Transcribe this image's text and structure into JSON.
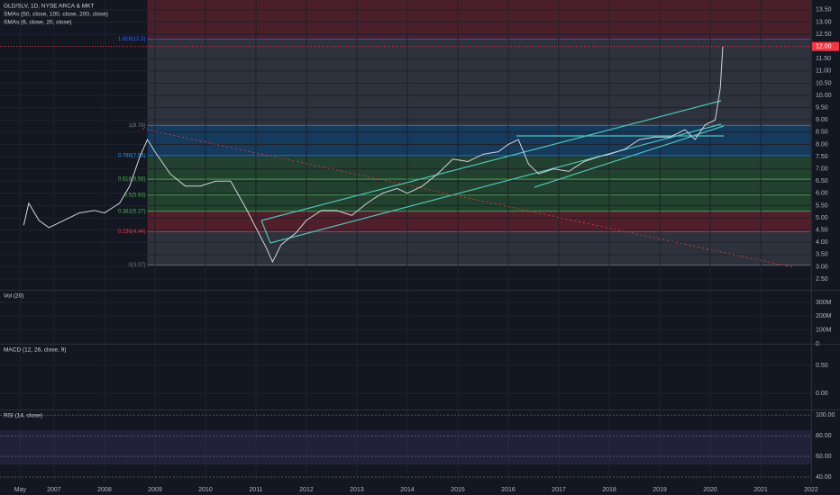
{
  "header": {
    "symbol": "GLD/SLV, 1D, NYSE ARCA & MKT",
    "sma1": "SMAs (50, close, 100, close, 200, close)",
    "sma2": "SMAs (6, close, 20, close)"
  },
  "chart_data": {
    "type": "line",
    "xlim": [
      2005.93,
      2022
    ],
    "ylim": [
      2.06,
      13.9
    ],
    "xticks": [
      {
        "value": 2006.33,
        "label": "May"
      },
      2007,
      2008,
      2009,
      2010,
      2011,
      2012,
      2013,
      2014,
      2015,
      2016,
      2017,
      2018,
      2019,
      2020,
      2021,
      2022
    ],
    "yticks": [
      {
        "value": 2.5,
        "label": "2.50"
      },
      {
        "value": 3,
        "label": "3.00"
      },
      {
        "value": 3.5,
        "label": "3.50"
      },
      {
        "value": 4,
        "label": "4.00"
      },
      {
        "value": 4.5,
        "label": "4.50"
      },
      {
        "value": 5,
        "label": "5.00"
      },
      {
        "value": 5.5,
        "label": "5.50"
      },
      {
        "value": 6,
        "label": "6.00"
      },
      {
        "value": 6.5,
        "label": "6.50"
      },
      {
        "value": 7,
        "label": "7.00"
      },
      {
        "value": 7.5,
        "label": "7.50"
      },
      {
        "value": 8,
        "label": "8.00"
      },
      {
        "value": 8.5,
        "label": "8.50"
      },
      {
        "value": 9,
        "label": "9.00"
      },
      {
        "value": 9.5,
        "label": "9.50"
      },
      {
        "value": 10,
        "label": "10.00"
      },
      {
        "value": 10.5,
        "label": "10.50"
      },
      {
        "value": 11,
        "label": "11.00"
      },
      {
        "value": 11.5,
        "label": "11.50"
      },
      {
        "value": 12.5,
        "label": "12.50"
      },
      {
        "value": 13,
        "label": "13.00"
      },
      {
        "value": 13.5,
        "label": "13.50"
      }
    ],
    "grid": true,
    "last_price": {
      "value": 12,
      "label": "12.00",
      "color": "#f23645"
    },
    "series": [
      {
        "color": "#d1d4dc",
        "x": [
          2006.4,
          2006.5,
          2006.7,
          2006.9,
          2007.2,
          2007.5,
          2007.8,
          2008.0,
          2008.3,
          2008.5,
          2008.7,
          2008.85,
          2009.0,
          2009.3,
          2009.6,
          2009.9,
          2010.2,
          2010.5,
          2010.8,
          2011.0,
          2011.2,
          2011.33,
          2011.5,
          2011.8,
          2012.0,
          2012.3,
          2012.6,
          2012.9,
          2013.2,
          2013.5,
          2013.8,
          2014.0,
          2014.3,
          2014.6,
          2014.9,
          2015.2,
          2015.5,
          2015.8,
          2016.0,
          2016.2,
          2016.4,
          2016.6,
          2016.9,
          2017.2,
          2017.5,
          2017.8,
          2018.0,
          2018.3,
          2018.6,
          2018.9,
          2019.2,
          2019.5,
          2019.7,
          2019.9,
          2020.1,
          2020.2,
          2020.25
        ],
        "values": [
          4.7,
          5.6,
          4.9,
          4.6,
          4.9,
          5.2,
          5.3,
          5.2,
          5.6,
          6.3,
          7.5,
          8.2,
          7.7,
          6.8,
          6.3,
          6.3,
          6.5,
          6.5,
          5.4,
          4.6,
          3.8,
          3.2,
          3.9,
          4.4,
          4.9,
          5.3,
          5.3,
          5.1,
          5.6,
          6.0,
          6.2,
          6.0,
          6.3,
          6.8,
          7.4,
          7.3,
          7.6,
          7.7,
          8.0,
          8.2,
          7.2,
          6.8,
          7.0,
          6.9,
          7.3,
          7.5,
          7.6,
          7.8,
          8.2,
          8.3,
          8.3,
          8.6,
          8.2,
          8.8,
          9.0,
          10.3,
          12.0
        ]
      }
    ],
    "fib": {
      "start": 2008.85,
      "levels": [
        {
          "value": 12.3,
          "label": "1.618(12.3)",
          "color": "#2962ff"
        },
        {
          "value": 8.78,
          "label": "1(8.78)",
          "color": "#787b86"
        },
        {
          "value": 7.54,
          "label": "0.786(7.54)",
          "color": "#2196f3"
        },
        {
          "value": 6.58,
          "label": "0.618(6.58)",
          "color": "#4caf50"
        },
        {
          "value": 5.93,
          "label": "0.5(5.93)",
          "color": "#4caf50"
        },
        {
          "value": 5.27,
          "label": "0.382(5.27)",
          "color": "#4caf50"
        },
        {
          "value": 4.44,
          "label": "0.236(4.44)",
          "color": "#f23645"
        },
        {
          "value": 3.07,
          "label": "0(3.07)",
          "color": "#787b86"
        }
      ]
    }
  },
  "volume": {
    "title": "Vol (20)",
    "ylim": [
      0,
      385000000
    ],
    "yticks": [
      {
        "value": 300000000,
        "label": "300M"
      },
      {
        "value": 200000000,
        "label": "200M"
      },
      {
        "value": 100000000,
        "label": "100M"
      },
      0
    ]
  },
  "macd": {
    "title": "MACD (12, 26, close, 9)",
    "ylim": [
      -0.29,
      0.87
    ],
    "yticks": [
      {
        "value": 0.5,
        "label": "0.50"
      },
      {
        "value": 0,
        "label": "0.00"
      }
    ]
  },
  "rsi": {
    "title": "RSI (14, close)",
    "ylim": [
      34.8,
      104.6
    ],
    "yticks": [
      {
        "value": 100,
        "label": "100.00"
      },
      {
        "value": 80,
        "label": "80.00"
      },
      {
        "value": 60,
        "label": "60.00"
      },
      {
        "value": 40,
        "label": "40.00"
      }
    ]
  }
}
